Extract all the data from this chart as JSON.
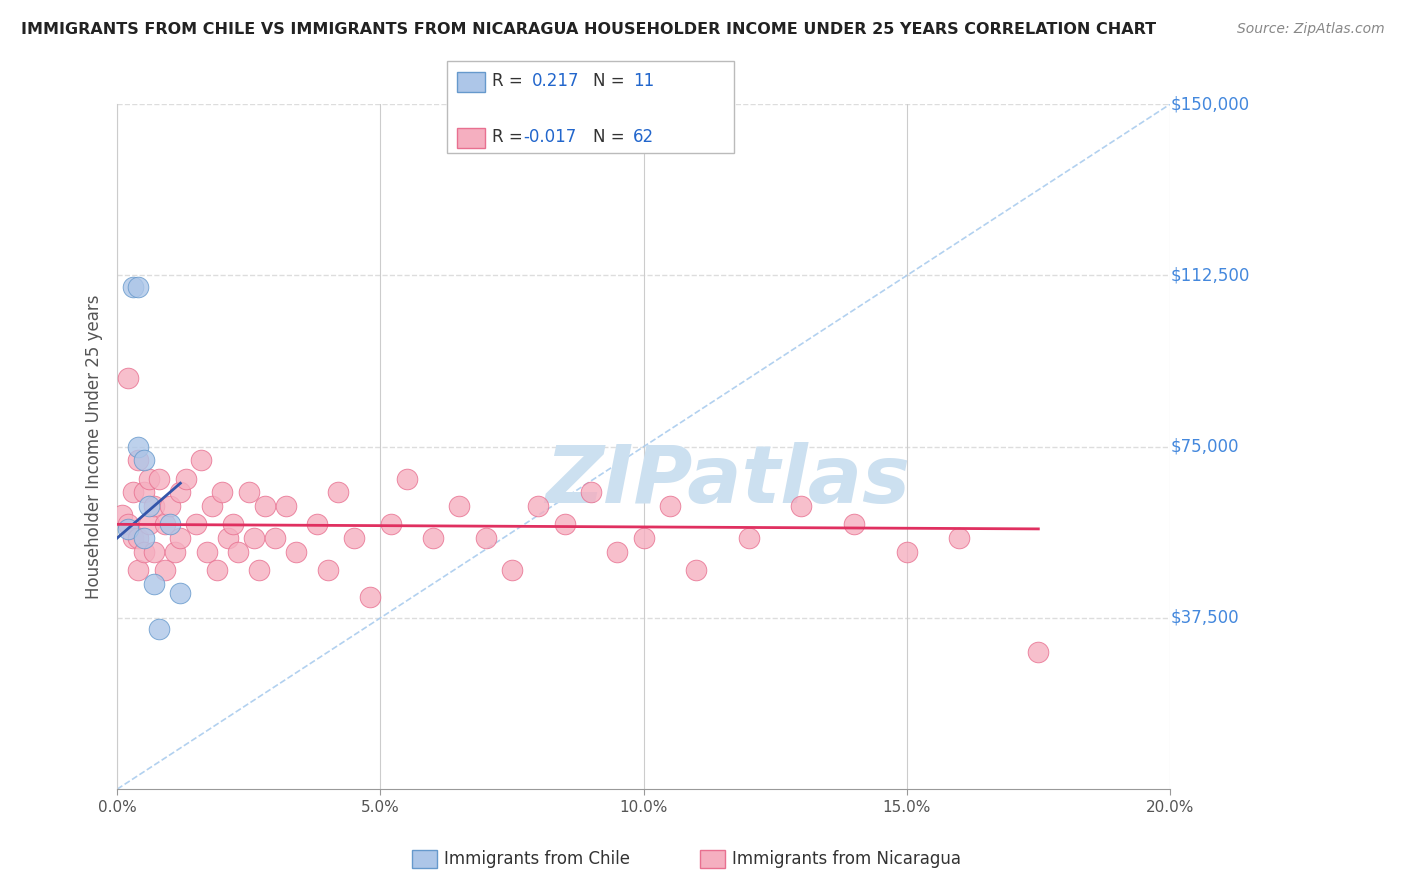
{
  "title": "IMMIGRANTS FROM CHILE VS IMMIGRANTS FROM NICARAGUA HOUSEHOLDER INCOME UNDER 25 YEARS CORRELATION CHART",
  "source": "Source: ZipAtlas.com",
  "xlabel_bottom": [
    "Immigrants from Chile",
    "Immigrants from Nicaragua"
  ],
  "ylabel": "Householder Income Under 25 years",
  "xlim": [
    0.0,
    0.2
  ],
  "ylim": [
    0,
    150000
  ],
  "xticks": [
    0.0,
    0.05,
    0.1,
    0.15,
    0.2
  ],
  "xtick_labels": [
    "0.0%",
    "5.0%",
    "10.0%",
    "15.0%",
    "20.0%"
  ],
  "yticks": [
    37500,
    75000,
    112500,
    150000
  ],
  "ytick_labels": [
    "$37,500",
    "$75,000",
    "$112,500",
    "$150,000"
  ],
  "chile_R": 0.217,
  "chile_N": 11,
  "nicaragua_R": -0.017,
  "nicaragua_N": 62,
  "chile_color": "#adc6e8",
  "chile_edge": "#6699cc",
  "nicaragua_color": "#f5afc0",
  "nicaragua_edge": "#e87090",
  "chile_line_color": "#3355aa",
  "nicaragua_line_color": "#e03060",
  "diagonal_color": "#aaccee",
  "watermark_text": "ZIPatlas",
  "watermark_color": "#cce0f0",
  "background_color": "#ffffff",
  "grid_color": "#dddddd",
  "chile_scatter_x": [
    0.002,
    0.003,
    0.004,
    0.004,
    0.005,
    0.005,
    0.006,
    0.007,
    0.008,
    0.01,
    0.012
  ],
  "chile_scatter_y": [
    57000,
    110000,
    110000,
    75000,
    72000,
    55000,
    62000,
    45000,
    35000,
    58000,
    43000
  ],
  "nicaragua_scatter_x": [
    0.001,
    0.002,
    0.002,
    0.003,
    0.003,
    0.004,
    0.004,
    0.004,
    0.005,
    0.005,
    0.006,
    0.006,
    0.007,
    0.007,
    0.008,
    0.009,
    0.009,
    0.01,
    0.011,
    0.012,
    0.012,
    0.013,
    0.015,
    0.016,
    0.017,
    0.018,
    0.019,
    0.02,
    0.021,
    0.022,
    0.023,
    0.025,
    0.026,
    0.027,
    0.028,
    0.03,
    0.032,
    0.034,
    0.038,
    0.04,
    0.042,
    0.045,
    0.048,
    0.052,
    0.055,
    0.06,
    0.065,
    0.07,
    0.075,
    0.08,
    0.085,
    0.09,
    0.095,
    0.1,
    0.105,
    0.11,
    0.12,
    0.13,
    0.14,
    0.15,
    0.16,
    0.175
  ],
  "nicaragua_scatter_y": [
    60000,
    90000,
    58000,
    65000,
    55000,
    72000,
    55000,
    48000,
    65000,
    52000,
    68000,
    58000,
    62000,
    52000,
    68000,
    58000,
    48000,
    62000,
    52000,
    65000,
    55000,
    68000,
    58000,
    72000,
    52000,
    62000,
    48000,
    65000,
    55000,
    58000,
    52000,
    65000,
    55000,
    48000,
    62000,
    55000,
    62000,
    52000,
    58000,
    48000,
    65000,
    55000,
    42000,
    58000,
    68000,
    55000,
    62000,
    55000,
    48000,
    62000,
    58000,
    65000,
    52000,
    55000,
    62000,
    48000,
    55000,
    62000,
    58000,
    52000,
    55000,
    30000
  ],
  "chile_trend_x": [
    0.0,
    0.012
  ],
  "chile_trend_y": [
    55000,
    67000
  ],
  "nicaragua_trend_x": [
    0.0,
    0.175
  ],
  "nicaragua_trend_y": [
    58000,
    57000
  ]
}
